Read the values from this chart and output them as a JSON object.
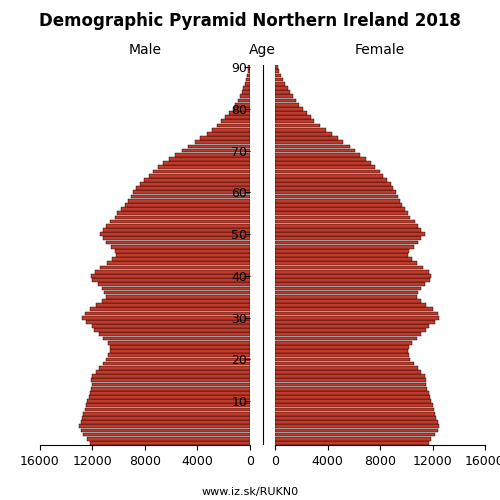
{
  "title": "Demographic Pyramid Northern Ireland 2018",
  "male_label": "Male",
  "female_label": "Female",
  "age_label": "Age",
  "source": "www.iz.sk/RUKN0",
  "xlim": 16000,
  "bar_color": "#c1392b",
  "edge_color": "black",
  "ages": [
    0,
    1,
    2,
    3,
    4,
    5,
    6,
    7,
    8,
    9,
    10,
    11,
    12,
    13,
    14,
    15,
    16,
    17,
    18,
    19,
    20,
    21,
    22,
    23,
    24,
    25,
    26,
    27,
    28,
    29,
    30,
    31,
    32,
    33,
    34,
    35,
    36,
    37,
    38,
    39,
    40,
    41,
    42,
    43,
    44,
    45,
    46,
    47,
    48,
    49,
    50,
    51,
    52,
    53,
    54,
    55,
    56,
    57,
    58,
    59,
    60,
    61,
    62,
    63,
    64,
    65,
    66,
    67,
    68,
    69,
    70,
    71,
    72,
    73,
    74,
    75,
    76,
    77,
    78,
    79,
    80,
    81,
    82,
    83,
    84,
    85,
    86,
    87,
    88,
    89,
    90
  ],
  "male": [
    12200,
    12400,
    12700,
    12900,
    13000,
    12900,
    12800,
    12700,
    12600,
    12500,
    12400,
    12300,
    12200,
    12100,
    12000,
    12100,
    12000,
    11700,
    11500,
    11200,
    11000,
    10800,
    10700,
    10700,
    10800,
    11200,
    11500,
    11900,
    12000,
    12500,
    12800,
    12600,
    12200,
    11700,
    11300,
    11000,
    11100,
    11300,
    11600,
    12000,
    12100,
    11800,
    11400,
    10900,
    10500,
    10200,
    10300,
    10600,
    11000,
    11200,
    11400,
    11200,
    11000,
    10700,
    10300,
    10100,
    9800,
    9500,
    9300,
    9100,
    8900,
    8700,
    8400,
    8100,
    7700,
    7400,
    7000,
    6600,
    6200,
    5700,
    5200,
    4700,
    4200,
    3800,
    3300,
    2900,
    2500,
    2200,
    1900,
    1600,
    1300,
    1100,
    900,
    750,
    620,
    500,
    400,
    310,
    230,
    170,
    120
  ],
  "female": [
    11700,
    11900,
    12200,
    12400,
    12500,
    12400,
    12300,
    12200,
    12100,
    12000,
    11900,
    11800,
    11700,
    11600,
    11500,
    11500,
    11400,
    11100,
    10900,
    10600,
    10300,
    10200,
    10100,
    10200,
    10400,
    10800,
    11100,
    11500,
    11700,
    12200,
    12500,
    12400,
    12000,
    11500,
    11100,
    10800,
    10900,
    11100,
    11400,
    11800,
    11900,
    11700,
    11300,
    10800,
    10400,
    10100,
    10200,
    10600,
    10900,
    11100,
    11400,
    11100,
    10900,
    10700,
    10300,
    10100,
    9900,
    9700,
    9500,
    9400,
    9200,
    9000,
    8800,
    8500,
    8200,
    8000,
    7600,
    7300,
    6900,
    6500,
    6100,
    5700,
    5200,
    4800,
    4300,
    3900,
    3400,
    3000,
    2700,
    2400,
    2100,
    1800,
    1600,
    1350,
    1150,
    950,
    760,
    600,
    450,
    330,
    220
  ],
  "age_ticks": [
    10,
    20,
    30,
    40,
    50,
    60,
    70,
    80,
    90
  ],
  "x_ticks": [
    0,
    4000,
    8000,
    12000,
    16000
  ],
  "tick_fontsize": 9,
  "label_fontsize": 10,
  "title_fontsize": 12
}
